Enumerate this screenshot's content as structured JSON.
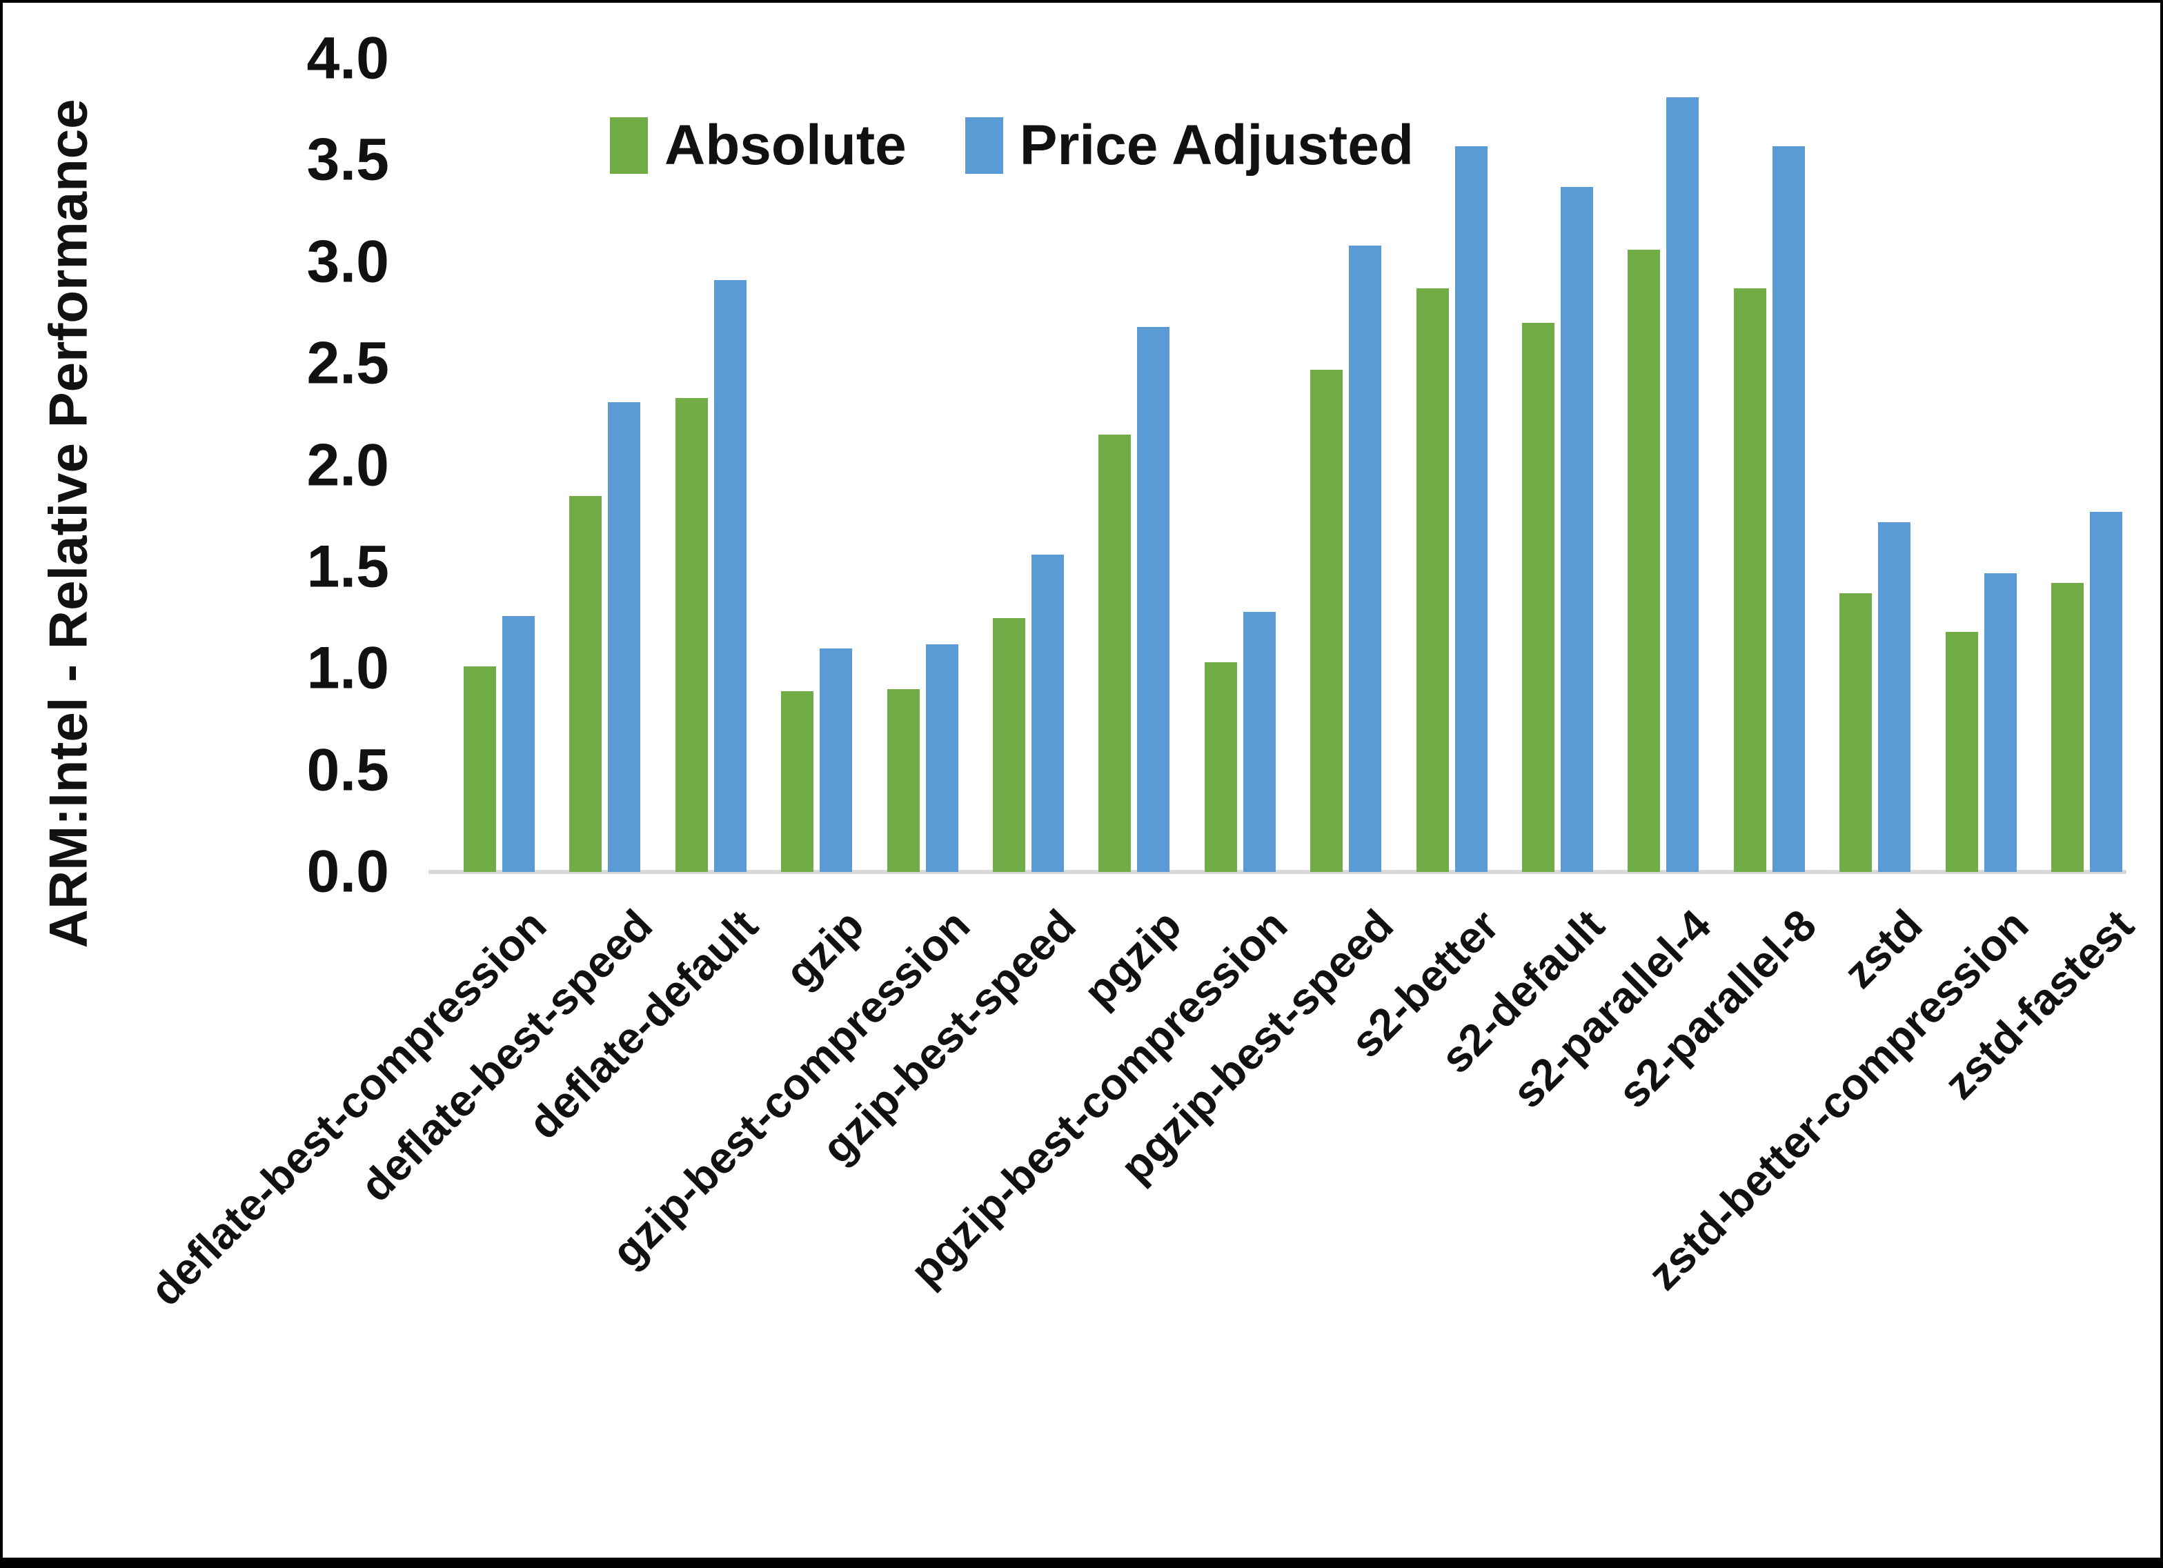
{
  "colors": {
    "absolute": "#70AD47",
    "price_adjusted": "#5B9BD5",
    "axis_line": "#D9D9D9",
    "text": "#111111",
    "background": "#FFFFFF",
    "frame": "#000000"
  },
  "legend": {
    "items": [
      {
        "label": "Absolute",
        "color": "#70AD47"
      },
      {
        "label": "Price Adjusted",
        "color": "#5B9BD5"
      }
    ]
  },
  "y_axis": {
    "title": "ARM:Intel - Relative Performance",
    "tick_labels": [
      "0.0",
      "0.5",
      "1.0",
      "1.5",
      "2.0",
      "2.5",
      "3.0",
      "3.5",
      "4.0"
    ]
  },
  "chart_data": {
    "type": "bar",
    "title": "",
    "xlabel": "",
    "ylabel": "ARM:Intel - Relative Performance",
    "ylim": [
      0.0,
      4.0
    ],
    "ytick_step": 0.5,
    "grid": false,
    "legend_position": "top-center",
    "categories": [
      "deflate-best-compression",
      "deflate-best-speed",
      "deflate-default",
      "gzip",
      "gzip-best-compression",
      "gzip-best-speed",
      "pgzip",
      "pgzip-best-compression",
      "pgzip-best-speed",
      "s2-better",
      "s2-default",
      "s2-parallel-4",
      "s2-parallel-8",
      "zstd",
      "zstd-better-compression",
      "zstd-fastest"
    ],
    "series": [
      {
        "name": "Absolute",
        "color": "#70AD47",
        "values": [
          1.01,
          1.85,
          2.33,
          0.89,
          0.9,
          1.25,
          2.15,
          1.03,
          2.47,
          2.87,
          2.7,
          3.06,
          2.87,
          1.37,
          1.18,
          1.42
        ]
      },
      {
        "name": "Price Adjusted",
        "color": "#5B9BD5",
        "values": [
          1.26,
          2.31,
          2.91,
          1.1,
          1.12,
          1.56,
          2.68,
          1.28,
          3.08,
          3.57,
          3.37,
          3.81,
          3.57,
          1.72,
          1.47,
          1.77
        ]
      }
    ]
  }
}
